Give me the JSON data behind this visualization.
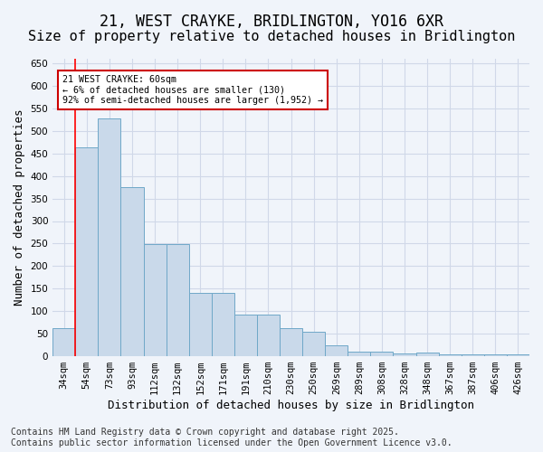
{
  "title": "21, WEST CRAYKE, BRIDLINGTON, YO16 6XR",
  "subtitle": "Size of property relative to detached houses in Bridlington",
  "xlabel": "Distribution of detached houses by size in Bridlington",
  "ylabel": "Number of detached properties",
  "categories": [
    "34sqm",
    "54sqm",
    "73sqm",
    "93sqm",
    "112sqm",
    "132sqm",
    "152sqm",
    "171sqm",
    "191sqm",
    "210sqm",
    "230sqm",
    "250sqm",
    "269sqm",
    "289sqm",
    "308sqm",
    "328sqm",
    "348sqm",
    "367sqm",
    "387sqm",
    "406sqm",
    "426sqm"
  ],
  "bar_values": [
    62,
    463,
    528,
    375,
    249,
    249,
    141,
    141,
    93,
    93,
    62,
    55,
    25,
    11,
    11,
    7,
    8,
    5,
    5,
    5,
    5
  ],
  "bar_color": "#c9d9ea",
  "bar_edge_color": "#6fa8c8",
  "red_line_x": 0.5,
  "annotation_text": "21 WEST CRAYKE: 60sqm\n← 6% of detached houses are smaller (130)\n92% of semi-detached houses are larger (1,952) →",
  "annotation_box_color": "#ffffff",
  "annotation_box_edge": "#cc0000",
  "ylim": [
    0,
    660
  ],
  "grid_color": "#d0d8e8",
  "footer": "Contains HM Land Registry data © Crown copyright and database right 2025.\nContains public sector information licensed under the Open Government Licence v3.0.",
  "background_color": "#f0f4fa",
  "title_fontsize": 12,
  "subtitle_fontsize": 11,
  "label_fontsize": 9,
  "tick_fontsize": 7.5,
  "footer_fontsize": 7
}
